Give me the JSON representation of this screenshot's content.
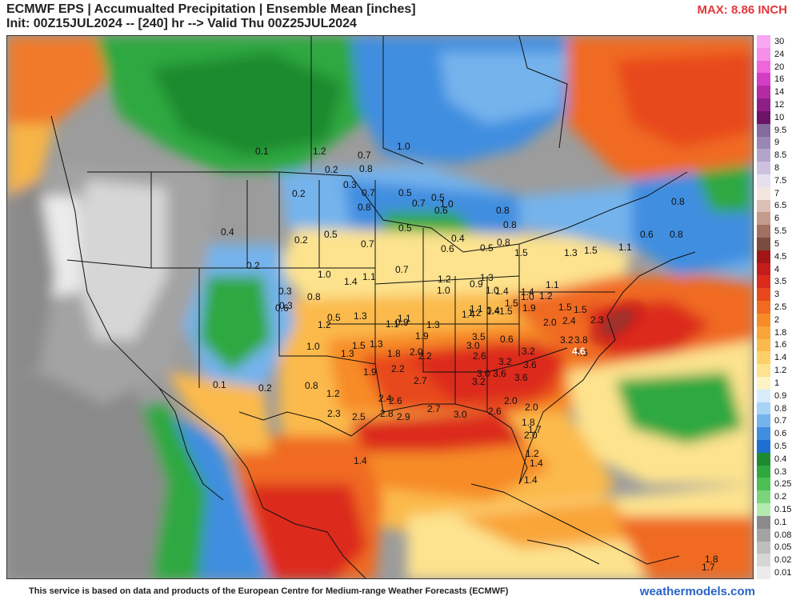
{
  "header": {
    "title_line1": "ECMWF EPS | Accumualted Precipitation | Ensemble Mean [inches]",
    "title_line2": "Init: 00Z15JUL2024 -- [240] hr --> Valid Thu 00Z25JUL2024",
    "max_label": "MAX: 8.86 INCH"
  },
  "legend": {
    "labels": [
      "30",
      "24",
      "20",
      "16",
      "14",
      "12",
      "10",
      "9.5",
      "9",
      "8.5",
      "8",
      "7.5",
      "7",
      "6.5",
      "6",
      "5.5",
      "5",
      "4.5",
      "4",
      "3.5",
      "3",
      "2.5",
      "2",
      "1.8",
      "1.6",
      "1.4",
      "1.2",
      "1",
      "0.9",
      "0.8",
      "0.7",
      "0.6",
      "0.5",
      "0.4",
      "0.3",
      "0.25",
      "0.2",
      "0.15",
      "0.1",
      "0.08",
      "0.05",
      "0.02",
      "0.01"
    ],
    "colors": [
      "#f9a6f3",
      "#f58fe9",
      "#ee66db",
      "#d33dc4",
      "#b22aa4",
      "#8f1f88",
      "#6e1468",
      "#836b9e",
      "#9a87b5",
      "#b3a5ca",
      "#cdc1de",
      "#e6e0ee",
      "#f3e6e0",
      "#dcbfb4",
      "#c49a8b",
      "#a07060",
      "#7a4b3f",
      "#a11515",
      "#c31c1c",
      "#dc2b1b",
      "#e8481c",
      "#f06a20",
      "#f78b26",
      "#f9a537",
      "#fbba4b",
      "#fcd067",
      "#fde38e",
      "#fef3c2",
      "#d6ecfb",
      "#a7d3f5",
      "#74b3ec",
      "#3f8ee0",
      "#1f6fd3",
      "#1e8a2f",
      "#2ea83f",
      "#4cbf55",
      "#7ad57a",
      "#b3eab0",
      "#8a8a8a",
      "#a3a3a3",
      "#bdbdbd",
      "#d6d6d6",
      "#ebebeb"
    ]
  },
  "map": {
    "values": [
      "0.1",
      "1.2",
      "0.7",
      "0.8",
      "1.0",
      "0.2",
      "0.2",
      "0.3",
      "0.7",
      "0.8",
      "0.5",
      "0.5",
      "0.6",
      "0.8",
      "0.8",
      "0.7",
      "1.0",
      "0.8",
      "0.4",
      "0.2",
      "0.5",
      "0.7",
      "0.5",
      "0.4",
      "0.5",
      "0.6",
      "0.8",
      "1.5",
      "1.3",
      "1.5",
      "1.1",
      "0.6",
      "0.8",
      "0.2",
      "1.0",
      "1.4",
      "1.1",
      "0.7",
      "1.2",
      "0.9",
      "1.0",
      "1.3",
      "0.3",
      "1.0",
      "1.0",
      "1.1",
      "1.4",
      "1.5",
      "0.6",
      "0.8",
      "0.5",
      "1.3",
      "1.1",
      "1.2",
      "1.4",
      "0.4",
      "1.4",
      "1.1",
      "1.3",
      "1.4",
      "1.2",
      "1.5",
      "1.9",
      "1.5",
      "1.5",
      "2.0",
      "2.4",
      "2.3",
      "0.9",
      "0.3",
      "1.2",
      "1.1",
      "1.5",
      "1.3",
      "1.9",
      "2.2",
      "3.0",
      "3.5",
      "3.8",
      "4.6",
      "0.6",
      "1.0",
      "1.3",
      "1.8",
      "2.0",
      "2.6",
      "3.2",
      "3.2",
      "3.6",
      "3.2",
      "3.6",
      "0.1",
      "0.2",
      "0.8",
      "1.2",
      "1.9",
      "2.2",
      "2.4",
      "2.7",
      "3.2",
      "3.0",
      "3.6",
      "2.3",
      "2.6",
      "2.5",
      "2.8",
      "2.9",
      "2.7",
      "3.0",
      "2.6",
      "2.0",
      "2.0",
      "1.8",
      "1.7",
      "2.0",
      "1.2",
      "1.4",
      "1.4",
      "1.4",
      "1.8",
      "1.7"
    ],
    "max_value": "4.6"
  },
  "footer": {
    "disclaimer": "This service is based on data and products of the European Centre for Medium-range Weather Forecasts (ECMWF)",
    "brand": "weathermodels.com"
  }
}
